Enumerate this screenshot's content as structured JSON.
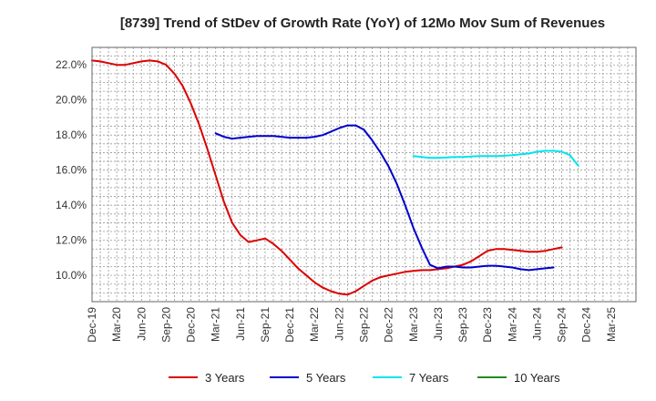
{
  "chart_data": {
    "type": "line",
    "title": "[8739]  Trend of StDev of Growth Rate (YoY) of 12Mo Mov Sum of Revenues",
    "xlabel": "",
    "ylabel": "",
    "ylim": [
      8.5,
      23.0
    ],
    "xlim_months": [
      0,
      66
    ],
    "x_tick_labels": [
      "Dec-19",
      "Mar-20",
      "Jun-20",
      "Sep-20",
      "Dec-20",
      "Mar-21",
      "Jun-21",
      "Sep-21",
      "Dec-21",
      "Mar-22",
      "Jun-22",
      "Sep-22",
      "Dec-22",
      "Mar-23",
      "Jun-23",
      "Sep-23",
      "Dec-23",
      "Mar-24",
      "Jun-24",
      "Sep-24",
      "Dec-24",
      "Mar-25"
    ],
    "y_ticks": [
      10,
      12,
      14,
      16,
      18,
      20,
      22
    ],
    "y_tick_labels": [
      "10.0%",
      "12.0%",
      "14.0%",
      "16.0%",
      "18.0%",
      "20.0%",
      "22.0%"
    ],
    "grid": true,
    "legend_position": "bottom",
    "series": [
      {
        "name": "3 Years",
        "color": "#dd0000",
        "x": [
          0,
          1,
          2,
          3,
          4,
          5,
          6,
          7,
          8,
          9,
          10,
          11,
          12,
          13,
          14,
          15,
          16,
          17,
          18,
          19,
          20,
          21,
          22,
          23,
          24,
          25,
          26,
          27,
          28,
          29,
          30,
          31,
          32,
          33,
          34,
          35,
          36,
          37,
          38,
          39,
          40,
          41,
          42,
          43,
          44,
          45,
          46,
          47,
          48,
          49,
          50,
          51,
          52,
          53,
          54,
          55,
          56,
          57,
          58,
          59,
          60
        ],
        "values": [
          22.25,
          22.2,
          22.1,
          22.0,
          22.0,
          22.1,
          22.2,
          22.25,
          22.2,
          22.0,
          21.5,
          20.8,
          19.8,
          18.6,
          17.2,
          15.7,
          14.2,
          13.0,
          12.3,
          11.9,
          12.0,
          12.1,
          11.8,
          11.4,
          10.9,
          10.4,
          10.0,
          9.6,
          9.3,
          9.1,
          8.95,
          8.9,
          9.1,
          9.4,
          9.7,
          9.9,
          10.0,
          10.1,
          10.2,
          10.25,
          10.3,
          10.3,
          10.35,
          10.4,
          10.5,
          10.6,
          10.8,
          11.1,
          11.4,
          11.5,
          11.5,
          11.45,
          11.4,
          11.35,
          11.35,
          11.4,
          11.5,
          11.6,
          null,
          null,
          null
        ]
      },
      {
        "name": "5 Years",
        "color": "#0000cc",
        "x": [
          15,
          16,
          17,
          18,
          19,
          20,
          21,
          22,
          23,
          24,
          25,
          26,
          27,
          28,
          29,
          30,
          31,
          32,
          33,
          34,
          35,
          36,
          37,
          38,
          39,
          40,
          41,
          42,
          43,
          44,
          45,
          46,
          47,
          48,
          49,
          50,
          51,
          52,
          53,
          54,
          55,
          56,
          57,
          58,
          59,
          60
        ],
        "values": [
          18.1,
          17.9,
          17.8,
          17.85,
          17.9,
          17.95,
          17.95,
          17.95,
          17.9,
          17.85,
          17.85,
          17.85,
          17.9,
          18.0,
          18.2,
          18.4,
          18.55,
          18.55,
          18.3,
          17.7,
          17.0,
          16.2,
          15.2,
          14.0,
          12.7,
          11.6,
          10.6,
          10.4,
          10.5,
          10.5,
          10.45,
          10.45,
          10.5,
          10.55,
          10.55,
          10.5,
          10.45,
          10.35,
          10.3,
          10.35,
          10.4,
          10.45,
          null,
          null,
          null,
          null
        ]
      },
      {
        "name": "7 Years",
        "color": "#00e5ee",
        "x": [
          39,
          40,
          41,
          42,
          43,
          44,
          45,
          46,
          47,
          48,
          49,
          50,
          51,
          52,
          53,
          54,
          55,
          56,
          57,
          58,
          59,
          60,
          61,
          62,
          63,
          64,
          65,
          66
        ],
        "values": [
          16.8,
          16.75,
          16.7,
          16.7,
          16.72,
          16.75,
          16.75,
          16.78,
          16.8,
          16.8,
          16.8,
          16.82,
          16.85,
          16.9,
          16.95,
          17.05,
          17.1,
          17.1,
          17.05,
          16.85,
          16.25,
          null,
          null,
          null,
          null,
          null,
          null,
          null
        ]
      },
      {
        "name": "10 Years",
        "color": "#228b22",
        "x": [],
        "values": []
      }
    ]
  }
}
